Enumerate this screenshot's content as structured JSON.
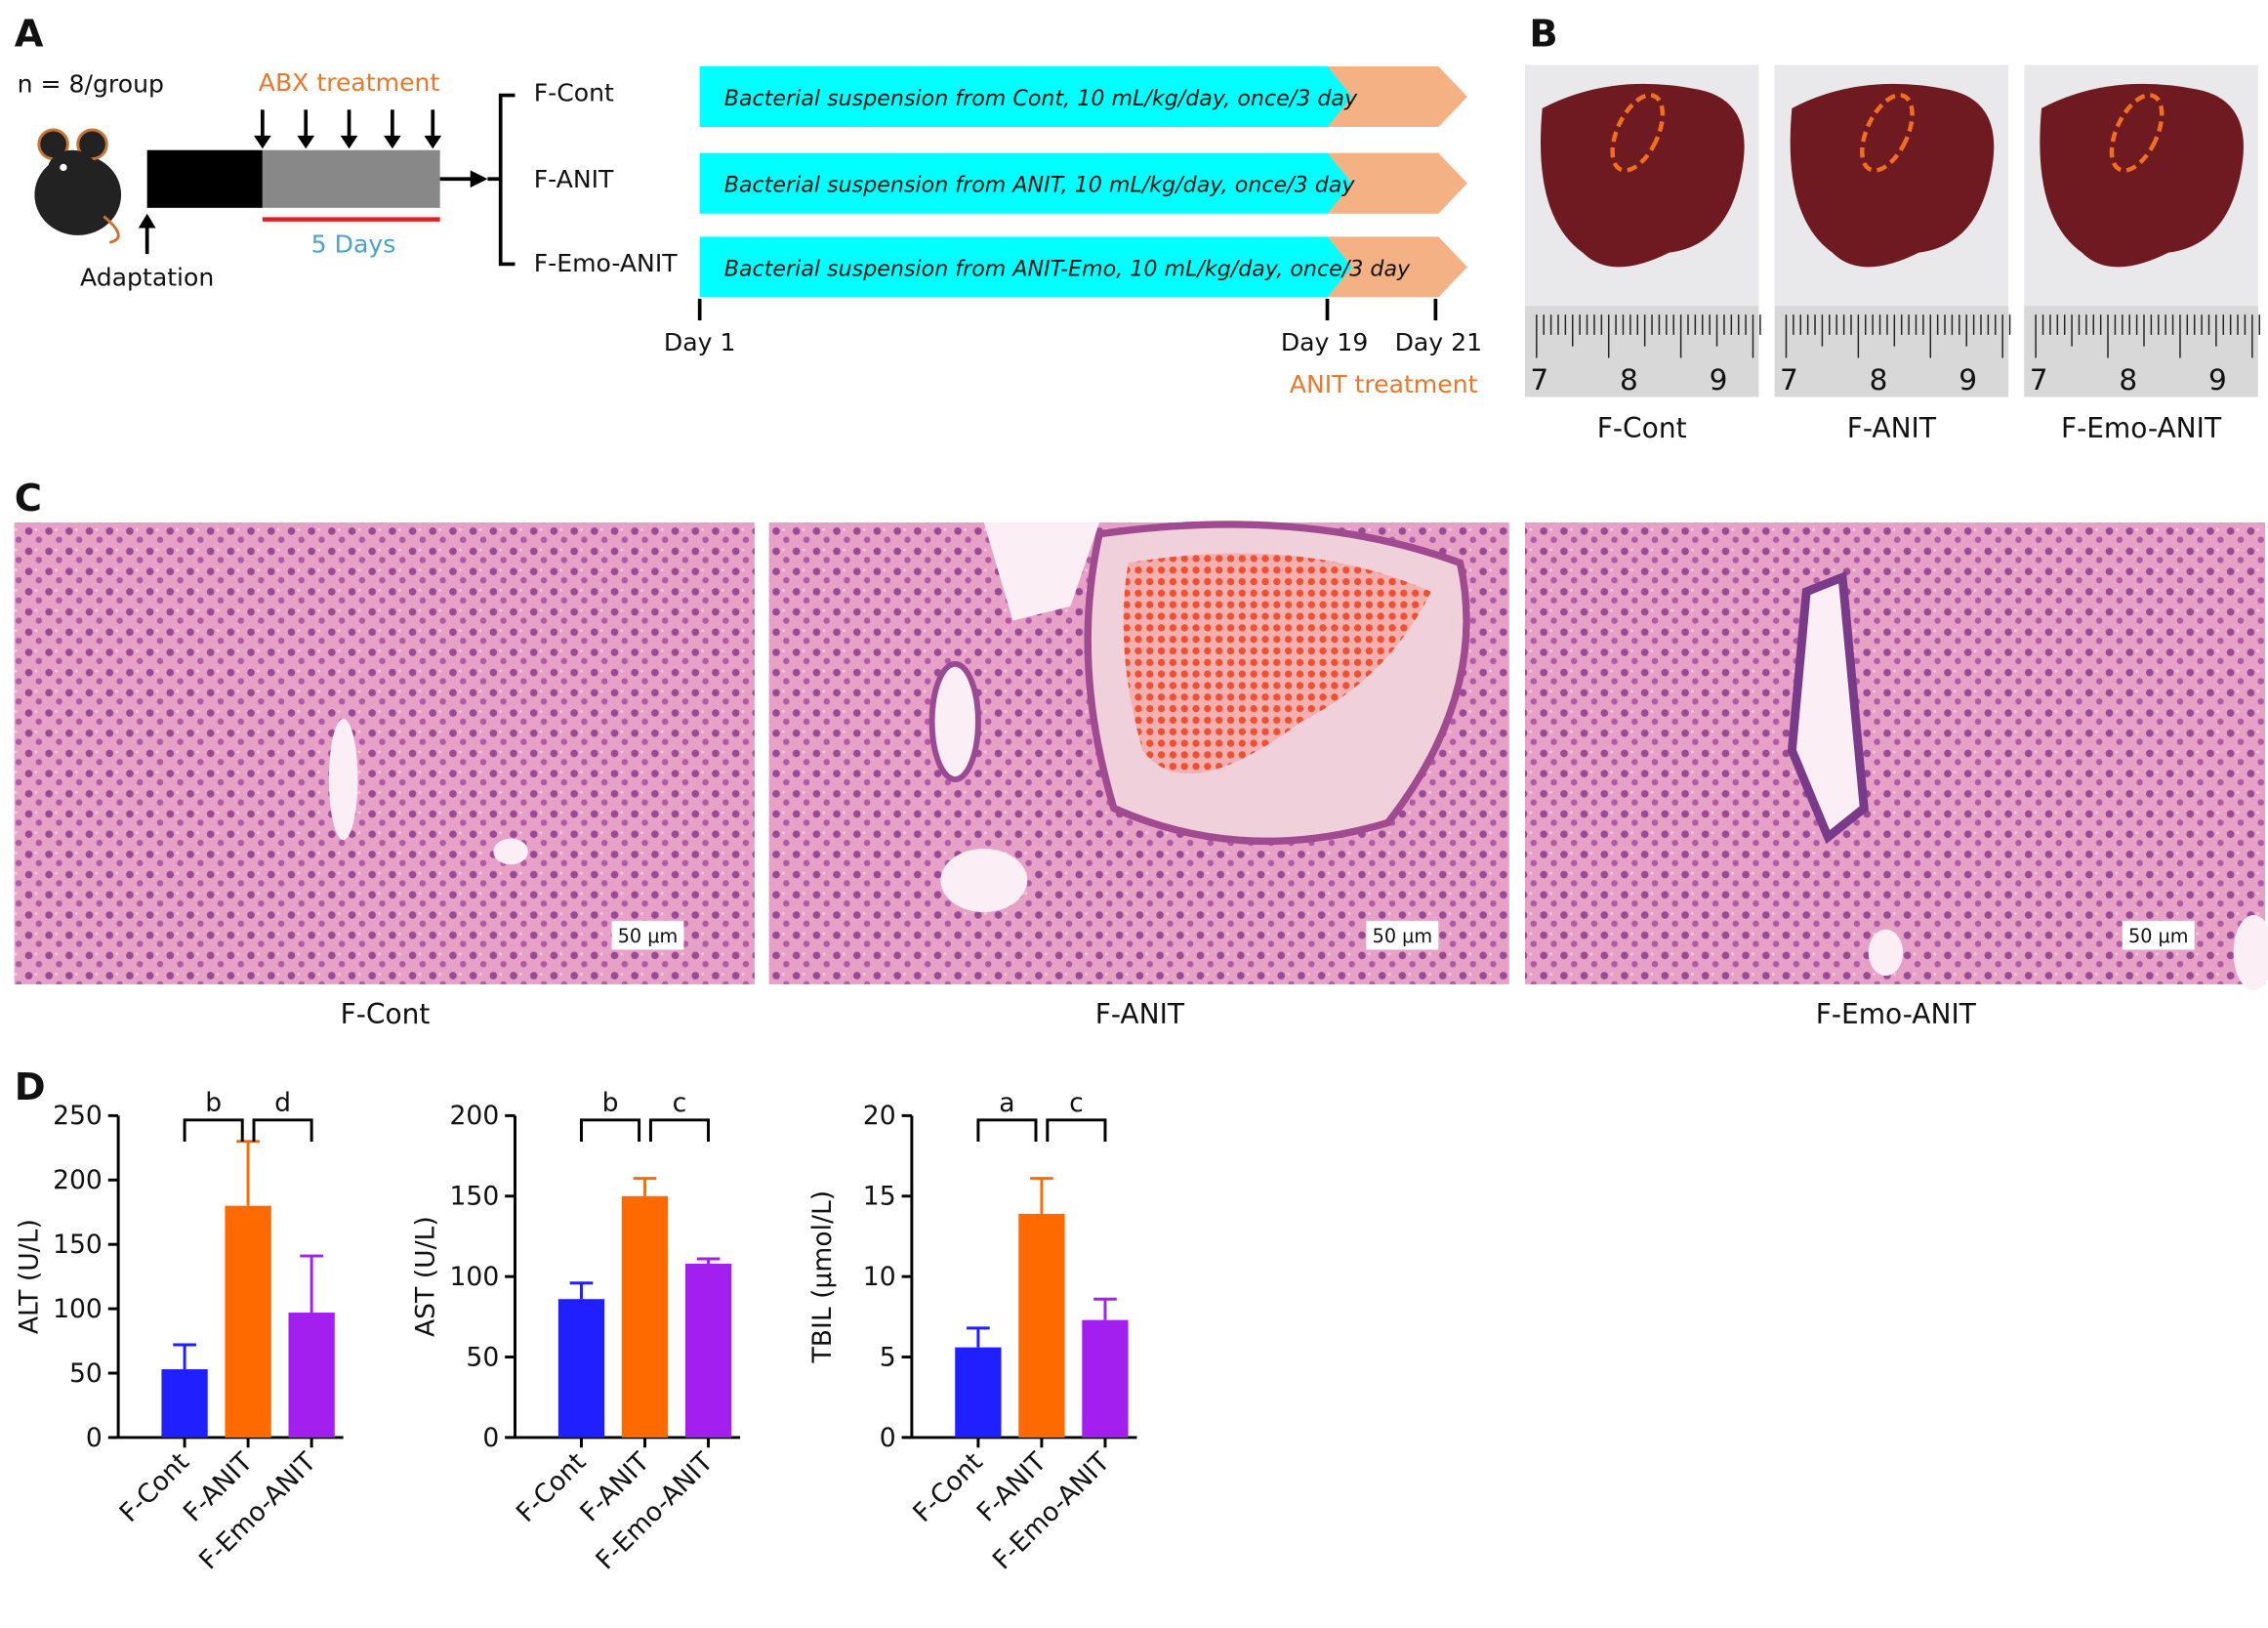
{
  "panel_a": {
    "label": "A",
    "group_size": "n = 8/group",
    "abx_label": "ABX treatment",
    "adaptation_label": "Adaptation",
    "duration_label": "5 Days",
    "groups": [
      {
        "name": "F-Cont",
        "treatment": "Bacterial suspension from Cont, 10 mL/kg/day, once/3 day"
      },
      {
        "name": "F-ANIT",
        "treatment": "Bacterial suspension from ANIT, 10 mL/kg/day, once/3 day"
      },
      {
        "name": "F-Emo-ANIT",
        "treatment": "Bacterial suspension from ANIT-Emo, 10 mL/kg/day, once/3 day"
      }
    ],
    "timeline": [
      "Day 1",
      "Day 19",
      "Day 21"
    ],
    "anit_label": "ANIT treatment"
  },
  "panel_b": {
    "label": "B",
    "ruler_labels": [
      "7",
      "8",
      "9"
    ],
    "captions": [
      "F-Cont",
      "F-ANIT",
      "F-Emo-ANIT"
    ]
  },
  "panel_c": {
    "label": "C",
    "scale_bar": "50 μm",
    "captions": [
      "F-Cont",
      "F-ANIT",
      "F-Emo-ANIT"
    ]
  },
  "panel_d": {
    "label": "D"
  },
  "chart_data": [
    {
      "type": "bar",
      "y_label": "ALT (U/L)",
      "categories": [
        "F-Cont",
        "F-ANIT",
        "F-Emo-ANIT"
      ],
      "values": [
        53,
        180,
        97
      ],
      "errors": [
        19,
        50,
        44
      ],
      "colors": [
        "#1f1fff",
        "#ff6a00",
        "#a21ff0"
      ],
      "ylim": [
        0,
        250
      ],
      "yticks": [
        0,
        50,
        100,
        150,
        200,
        250
      ],
      "annotations": [
        "b",
        "d"
      ]
    },
    {
      "type": "bar",
      "y_label": "AST (U/L)",
      "categories": [
        "F-Cont",
        "F-ANIT",
        "F-Emo-ANIT"
      ],
      "values": [
        86,
        150,
        108
      ],
      "errors": [
        10,
        11,
        3
      ],
      "colors": [
        "#1f1fff",
        "#ff6a00",
        "#a21ff0"
      ],
      "ylim": [
        0,
        200
      ],
      "yticks": [
        0,
        50,
        100,
        150,
        200
      ],
      "annotations": [
        "b",
        "c"
      ]
    },
    {
      "type": "bar",
      "y_label": "TBIL (μmol/L)",
      "categories": [
        "F-Cont",
        "F-ANIT",
        "F-Emo-ANIT"
      ],
      "values": [
        5.6,
        13.9,
        7.3
      ],
      "errors": [
        1.2,
        2.2,
        1.3
      ],
      "colors": [
        "#1f1fff",
        "#ff6a00",
        "#a21ff0"
      ],
      "ylim": [
        0,
        20
      ],
      "yticks": [
        0,
        5,
        10,
        15,
        20
      ],
      "annotations": [
        "a",
        "c"
      ]
    }
  ]
}
